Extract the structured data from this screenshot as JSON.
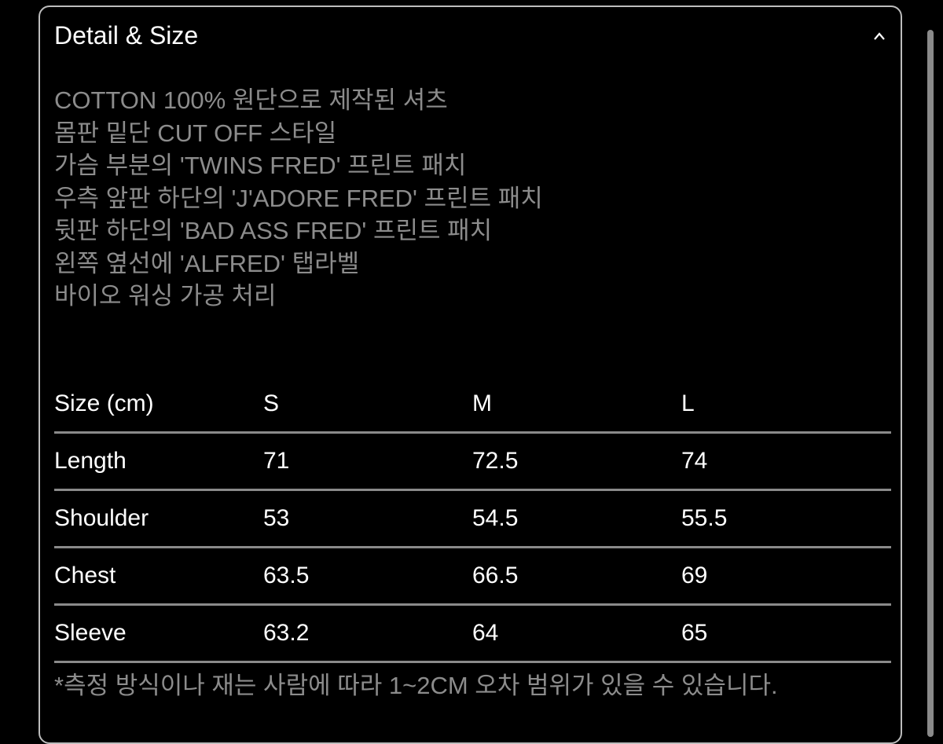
{
  "panel": {
    "title": "Detail & Size",
    "collapse_icon": "chevron-up-icon",
    "description": [
      "COTTON 100% 원단으로 제작된 셔츠",
      "몸판 밑단 CUT OFF 스타일",
      "가슴 부분의 'TWINS FRED' 프린트 패치",
      "우측 앞판 하단의 'J'ADORE FRED' 프린트 패치",
      "뒷판 하단의 'BAD ASS FRED' 프린트 패치",
      "왼쪽 옆선에 'ALFRED' 탭라벨",
      "바이오 워싱 가공 처리"
    ],
    "size_table": {
      "headers": [
        "Size (cm)",
        "S",
        "M",
        "L"
      ],
      "rows": [
        [
          "Length",
          "71",
          "72.5",
          "74"
        ],
        [
          "Shoulder",
          "53",
          "54.5",
          "55.5"
        ],
        [
          "Chest",
          "63.5",
          "66.5",
          "69"
        ],
        [
          "Sleeve",
          "63.2",
          "64",
          "65"
        ]
      ]
    },
    "note": "*측정 방식이나 재는 사람에 따라 1~2CM 오차 범위가 있을 수 있습니다."
  }
}
